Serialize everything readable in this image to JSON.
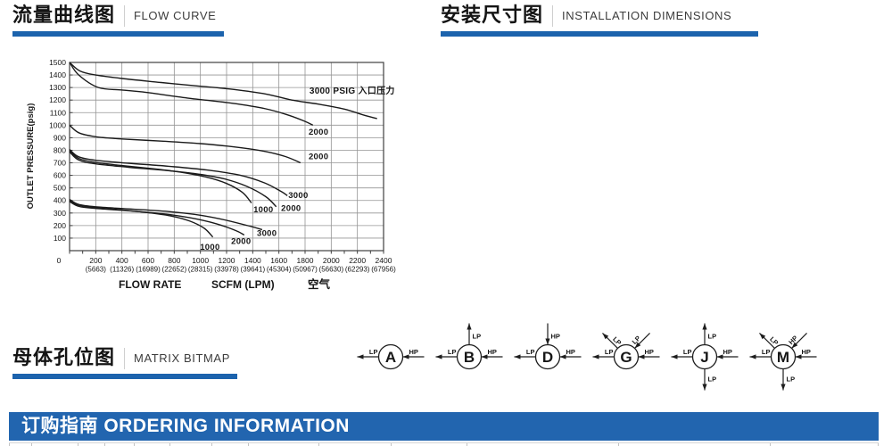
{
  "colors": {
    "accent_bar": "#1c63ad",
    "banner_blue": "#2265af",
    "grid_gray": "#949494",
    "curve_black": "#1a1a1a"
  },
  "headers": {
    "flow": {
      "cn": "流量曲线图",
      "en": "FLOW CURVE"
    },
    "install": {
      "cn": "安装尺寸图",
      "en": "INSTALLATION DIMENSIONS"
    },
    "matrix": {
      "cn": "母体孔位图",
      "en": "MATRIX BITMAP"
    }
  },
  "banner": {
    "text": "订购指南 ORDERING INFORMATION"
  },
  "chart_data": {
    "type": "line",
    "title": "",
    "xlabel_parts": [
      "FLOW RATE",
      "SCFM (LPM)",
      "空气"
    ],
    "ylabel": "OUTLET PRESSURE(psig)",
    "xlim": [
      0,
      2400
    ],
    "ylim": [
      0,
      1500
    ],
    "x_ticks": [
      0,
      200,
      400,
      600,
      800,
      1000,
      1200,
      1400,
      1600,
      1800,
      2000,
      2200,
      2400
    ],
    "x_ticks_lpm": [
      "",
      "(5663)",
      "(11326)",
      "(16989)",
      "(22652)",
      "(28315)",
      "(33978)",
      "(39641)",
      "(45304)",
      "(50967)",
      "(56630)",
      "(62293)",
      "(67956)"
    ],
    "y_ticks": [
      100,
      200,
      300,
      400,
      500,
      600,
      700,
      800,
      900,
      1000,
      1100,
      1200,
      1300,
      1400,
      1500
    ],
    "grid": true,
    "series": [
      {
        "name": "outlet1500-inlet3000",
        "points": [
          [
            0,
            1500
          ],
          [
            80,
            1432
          ],
          [
            200,
            1400
          ],
          [
            400,
            1372
          ],
          [
            700,
            1340
          ],
          [
            1000,
            1310
          ],
          [
            1250,
            1285
          ],
          [
            1500,
            1248
          ],
          [
            1700,
            1200
          ],
          [
            1900,
            1168
          ],
          [
            2100,
            1128
          ],
          [
            2250,
            1080
          ],
          [
            2350,
            1052
          ]
        ]
      },
      {
        "name": "outlet1500-inlet2000",
        "points": [
          [
            0,
            1500
          ],
          [
            70,
            1400
          ],
          [
            220,
            1300
          ],
          [
            400,
            1280
          ],
          [
            560,
            1265
          ],
          [
            900,
            1216
          ],
          [
            1240,
            1175
          ],
          [
            1500,
            1130
          ],
          [
            1680,
            1078
          ],
          [
            1800,
            1030
          ],
          [
            1860,
            1000
          ]
        ]
      },
      {
        "name": "outlet1000-inlet2000",
        "points": [
          [
            0,
            1000
          ],
          [
            70,
            940
          ],
          [
            200,
            908
          ],
          [
            400,
            890
          ],
          [
            700,
            873
          ],
          [
            1000,
            853
          ],
          [
            1300,
            822
          ],
          [
            1500,
            790
          ],
          [
            1650,
            750
          ],
          [
            1765,
            700
          ]
        ]
      },
      {
        "name": "outlet800-inlet1000",
        "points": [
          [
            0,
            800
          ],
          [
            70,
            735
          ],
          [
            200,
            703
          ],
          [
            400,
            678
          ],
          [
            650,
            652
          ],
          [
            850,
            625
          ],
          [
            1050,
            585
          ],
          [
            1200,
            535
          ],
          [
            1320,
            465
          ],
          [
            1390,
            380
          ]
        ]
      },
      {
        "name": "outlet800-inlet2000",
        "points": [
          [
            0,
            788
          ],
          [
            70,
            722
          ],
          [
            200,
            692
          ],
          [
            450,
            665
          ],
          [
            700,
            643
          ],
          [
            950,
            615
          ],
          [
            1170,
            575
          ],
          [
            1350,
            515
          ],
          [
            1500,
            430
          ],
          [
            1580,
            350
          ]
        ]
      },
      {
        "name": "outlet800-inlet3000",
        "points": [
          [
            0,
            806
          ],
          [
            70,
            748
          ],
          [
            200,
            720
          ],
          [
            450,
            697
          ],
          [
            750,
            673
          ],
          [
            1050,
            643
          ],
          [
            1300,
            602
          ],
          [
            1490,
            540
          ],
          [
            1620,
            470
          ],
          [
            1665,
            438
          ]
        ]
      },
      {
        "name": "outlet400-inlet1000",
        "points": [
          [
            0,
            400
          ],
          [
            70,
            362
          ],
          [
            200,
            343
          ],
          [
            400,
            325
          ],
          [
            600,
            303
          ],
          [
            780,
            275
          ],
          [
            920,
            235
          ],
          [
            1030,
            178
          ],
          [
            1095,
            108
          ]
        ]
      },
      {
        "name": "outlet400-inlet2000",
        "points": [
          [
            0,
            392
          ],
          [
            70,
            353
          ],
          [
            200,
            336
          ],
          [
            450,
            318
          ],
          [
            700,
            296
          ],
          [
            920,
            262
          ],
          [
            1120,
            215
          ],
          [
            1270,
            160
          ],
          [
            1335,
            125
          ]
        ]
      },
      {
        "name": "outlet400-inlet3000",
        "points": [
          [
            0,
            408
          ],
          [
            70,
            368
          ],
          [
            200,
            350
          ],
          [
            450,
            333
          ],
          [
            750,
            312
          ],
          [
            1000,
            282
          ],
          [
            1200,
            242
          ],
          [
            1380,
            195
          ],
          [
            1472,
            168
          ]
        ]
      }
    ],
    "annotations": [
      {
        "text": "3000 PSIG 入口压力",
        "x": 1833,
        "y": 1272,
        "size": 10
      },
      {
        "text": "2000",
        "x": 1827,
        "y": 945,
        "size": 9.5
      },
      {
        "text": "2000",
        "x": 1827,
        "y": 750,
        "size": 9.5
      },
      {
        "text": "3000",
        "x": 1672,
        "y": 440,
        "size": 9.5
      },
      {
        "text": "2000",
        "x": 1617,
        "y": 338,
        "size": 9.5
      },
      {
        "text": "1000",
        "x": 1405,
        "y": 327,
        "size": 9.5
      },
      {
        "text": "3000",
        "x": 1432,
        "y": 140,
        "size": 9.5
      },
      {
        "text": "2000",
        "x": 1235,
        "y": 75,
        "size": 9.5
      },
      {
        "text": "1000",
        "x": 997,
        "y": 30,
        "size": 9.5
      }
    ]
  },
  "matrix_diagrams": [
    {
      "letter": "A",
      "ports": [
        {
          "dir": "left",
          "label": "LP",
          "arrow": "out"
        },
        {
          "dir": "right",
          "label": "HP",
          "arrow": "in"
        }
      ]
    },
    {
      "letter": "B",
      "ports": [
        {
          "dir": "up",
          "label": "LP",
          "arrow": "out"
        },
        {
          "dir": "left",
          "label": "LP",
          "arrow": "out"
        },
        {
          "dir": "right",
          "label": "HP",
          "arrow": "in"
        }
      ]
    },
    {
      "letter": "D",
      "ports": [
        {
          "dir": "up",
          "label": "HP",
          "arrow": "in"
        },
        {
          "dir": "left",
          "label": "LP",
          "arrow": "out"
        },
        {
          "dir": "right",
          "label": "HP",
          "arrow": "in"
        }
      ]
    },
    {
      "letter": "G",
      "ports": [
        {
          "dir": "ul",
          "label": "LP",
          "arrow": "out"
        },
        {
          "dir": "ur",
          "label": "LP",
          "arrow": "in"
        },
        {
          "dir": "left",
          "label": "LP",
          "arrow": "out"
        },
        {
          "dir": "right",
          "label": "HP",
          "arrow": "in"
        }
      ]
    },
    {
      "letter": "J",
      "ports": [
        {
          "dir": "up",
          "label": "LP",
          "arrow": "out"
        },
        {
          "dir": "down",
          "label": "LP",
          "arrow": "out"
        },
        {
          "dir": "left",
          "label": "LP",
          "arrow": "out"
        },
        {
          "dir": "right",
          "label": "HP",
          "arrow": "in"
        }
      ]
    },
    {
      "letter": "M",
      "ports": [
        {
          "dir": "ul",
          "label": "LP",
          "arrow": "out"
        },
        {
          "dir": "ur",
          "label": "HP",
          "arrow": "in"
        },
        {
          "dir": "left",
          "label": "LP",
          "arrow": "out"
        },
        {
          "dir": "right",
          "label": "HP",
          "arrow": "in"
        },
        {
          "dir": "down",
          "label": "LP",
          "arrow": "out"
        }
      ]
    }
  ],
  "bottom_table": {
    "column_edges": [
      0,
      25,
      77,
      107,
      140,
      180,
      227,
      268,
      347,
      428,
      513,
      683,
      853,
      974
    ]
  }
}
